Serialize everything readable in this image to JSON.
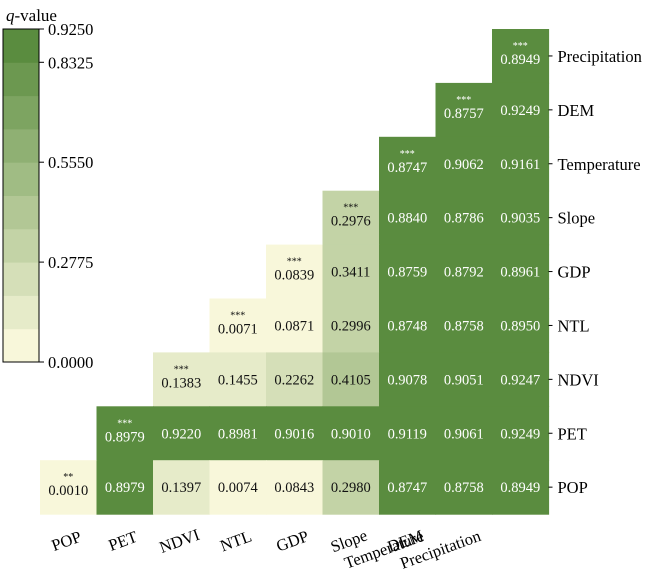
{
  "chart_data": {
    "type": "heatmap",
    "legend_title_italic": "q",
    "legend_title_rest": "-value",
    "colorbar_ticks": [
      "0.9250",
      "0.8325",
      "0.5550",
      "0.2775",
      "0.0000"
    ],
    "colorbar_tick_values": [
      0.925,
      0.8325,
      0.555,
      0.2775,
      0.0
    ],
    "colorbar_range": [
      0.0,
      0.925
    ],
    "colorbar_bands": 10,
    "color_low": "#f8f7da",
    "color_high": "#5a8c3f",
    "columns": [
      "POP",
      "PET",
      "NDVI",
      "NTL",
      "GDP",
      "Slope",
      "Temperature",
      "DEM",
      "Precipitation"
    ],
    "rows": [
      "Precipitation",
      "DEM",
      "Temperature",
      "Slope",
      "GDP",
      "NTL",
      "NDVI",
      "PET",
      "POP"
    ],
    "x_tick_labels": [
      {
        "line1": "POP",
        "line2": ""
      },
      {
        "line1": "PET",
        "line2": ""
      },
      {
        "line1": "NDVI",
        "line2": ""
      },
      {
        "line1": "NTL",
        "line2": ""
      },
      {
        "line1": "GDP",
        "line2": ""
      },
      {
        "line1": "Slope",
        "line2": "Temperature"
      },
      {
        "line1": "DEM",
        "line2": "Precipitation"
      }
    ],
    "cells": [
      {
        "row": 0,
        "col": 8,
        "value": 0.8949,
        "sig": "***"
      },
      {
        "row": 1,
        "col": 7,
        "value": 0.8757,
        "sig": "***"
      },
      {
        "row": 1,
        "col": 8,
        "value": 0.9249
      },
      {
        "row": 2,
        "col": 6,
        "value": 0.8747,
        "sig": "***"
      },
      {
        "row": 2,
        "col": 7,
        "value": 0.9062
      },
      {
        "row": 2,
        "col": 8,
        "value": 0.9161
      },
      {
        "row": 3,
        "col": 5,
        "value": 0.2976,
        "sig": "***"
      },
      {
        "row": 3,
        "col": 6,
        "value": 0.884
      },
      {
        "row": 3,
        "col": 7,
        "value": 0.8786
      },
      {
        "row": 3,
        "col": 8,
        "value": 0.9035
      },
      {
        "row": 4,
        "col": 4,
        "value": 0.0839,
        "sig": "***"
      },
      {
        "row": 4,
        "col": 5,
        "value": 0.3411
      },
      {
        "row": 4,
        "col": 6,
        "value": 0.8759
      },
      {
        "row": 4,
        "col": 7,
        "value": 0.8792
      },
      {
        "row": 4,
        "col": 8,
        "value": 0.8961
      },
      {
        "row": 5,
        "col": 3,
        "value": 0.0071,
        "sig": "***"
      },
      {
        "row": 5,
        "col": 4,
        "value": 0.0871
      },
      {
        "row": 5,
        "col": 5,
        "value": 0.2996
      },
      {
        "row": 5,
        "col": 6,
        "value": 0.8748
      },
      {
        "row": 5,
        "col": 7,
        "value": 0.8758
      },
      {
        "row": 5,
        "col": 8,
        "value": 0.895
      },
      {
        "row": 6,
        "col": 2,
        "value": 0.1383,
        "sig": "***"
      },
      {
        "row": 6,
        "col": 3,
        "value": 0.1455
      },
      {
        "row": 6,
        "col": 4,
        "value": 0.2262
      },
      {
        "row": 6,
        "col": 5,
        "value": 0.4105
      },
      {
        "row": 6,
        "col": 6,
        "value": 0.9078
      },
      {
        "row": 6,
        "col": 7,
        "value": 0.9051
      },
      {
        "row": 6,
        "col": 8,
        "value": 0.9247
      },
      {
        "row": 7,
        "col": 1,
        "value": 0.8979,
        "sig": "***"
      },
      {
        "row": 7,
        "col": 2,
        "value": 0.922
      },
      {
        "row": 7,
        "col": 3,
        "value": 0.8981
      },
      {
        "row": 7,
        "col": 4,
        "value": 0.9016
      },
      {
        "row": 7,
        "col": 5,
        "value": 0.901
      },
      {
        "row": 7,
        "col": 6,
        "value": 0.9119
      },
      {
        "row": 7,
        "col": 7,
        "value": 0.9061
      },
      {
        "row": 7,
        "col": 8,
        "value": 0.9249
      },
      {
        "row": 8,
        "col": 0,
        "value": 0.001,
        "sig": "**"
      },
      {
        "row": 8,
        "col": 1,
        "value": 0.8979
      },
      {
        "row": 8,
        "col": 2,
        "value": 0.1397
      },
      {
        "row": 8,
        "col": 3,
        "value": 0.0074
      },
      {
        "row": 8,
        "col": 4,
        "value": 0.0843
      },
      {
        "row": 8,
        "col": 5,
        "value": 0.298
      },
      {
        "row": 8,
        "col": 6,
        "value": 0.8747
      },
      {
        "row": 8,
        "col": 7,
        "value": 0.8758
      },
      {
        "row": 8,
        "col": 8,
        "value": 0.8949
      }
    ]
  }
}
